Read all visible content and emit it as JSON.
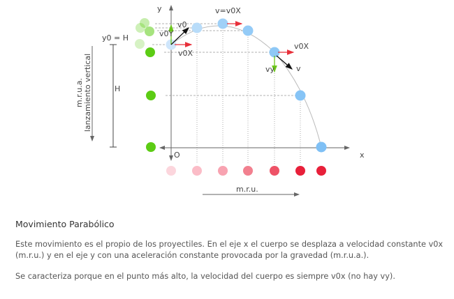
{
  "diagram": {
    "y_axis": "y",
    "x_axis": "x",
    "origin": "O",
    "y0_label": "y0 = H",
    "height_label": "H",
    "vertical_label_1": "m.r.u.a.",
    "vertical_label_2": "lanzamiento vertical",
    "horizontal_label": "m.r.u.",
    "v0": "v0",
    "v0y": "v0Y",
    "v0x": "v0X",
    "top_label": "v=v0X",
    "v0x_2": "v0X",
    "vy": "vy",
    "v": "v",
    "colors": {
      "projectile": "#8ec8f6",
      "vertical": "#5ccc14",
      "horizontal": "#e8203a",
      "vx": "#e8303a",
      "vy": "#6cc61a"
    }
  },
  "text": {
    "title": "Movimiento Parabólico",
    "p1": "Este movimiento es el propio de los proyectiles. En el eje x el cuerpo se desplaza a velocidad constante v0x (m.r.u.) y en el eje y con una aceleración constante provocada por la gravedad (m.r.u.a.).",
    "p2": "Se caracteriza porque en el punto más alto, la velocidad del cuerpo es siempre v0x (no hay vy)."
  }
}
